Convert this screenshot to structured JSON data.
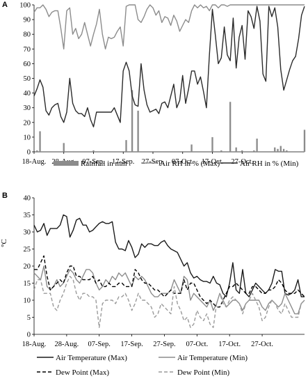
{
  "chart_data": [
    {
      "panel_label": "A",
      "type": "line",
      "ylim": [
        0,
        100
      ],
      "yticks": [
        0,
        10,
        20,
        30,
        40,
        50,
        60,
        70,
        80,
        90,
        100
      ],
      "grid": false,
      "legend_position": "bottom",
      "x_tick_labels": [
        "18-Aug.",
        "28-Aug.",
        "07-Sep.",
        "17-Sep.",
        "27-Sep.",
        "07-Oct.",
        "17-Oct.",
        "27-Oct."
      ],
      "x_tick_day_index": [
        0,
        10,
        20,
        30,
        40,
        50,
        60,
        70
      ],
      "series": [
        {
          "name": "Rainfall in mm",
          "type": "bar",
          "color": "#8c8c8c",
          "values": [
            0,
            1,
            14,
            0,
            0,
            0,
            0,
            0,
            0,
            0,
            6,
            0,
            0,
            0,
            0,
            0,
            0,
            0,
            0,
            0,
            1,
            0,
            0,
            0,
            0,
            0,
            0,
            0,
            0,
            0,
            0,
            8,
            0,
            42,
            0,
            28,
            0,
            0,
            0,
            0,
            0,
            0,
            0,
            0,
            0,
            0,
            0,
            0,
            0,
            0,
            0,
            0,
            0,
            5,
            0,
            0,
            0,
            0,
            0,
            0,
            10,
            0,
            0,
            1,
            0,
            0,
            34,
            0,
            3,
            0,
            1,
            0,
            0,
            0,
            1,
            9,
            0,
            0,
            0,
            0,
            0,
            3,
            2,
            4,
            2,
            1,
            0,
            0,
            0,
            0,
            0,
            15
          ]
        },
        {
          "name": "Air RH in % (Max)",
          "type": "line",
          "color": "#8c8c8c",
          "values": [
            95,
            98,
            98,
            100,
            97,
            92,
            95,
            96,
            96,
            84,
            70,
            96,
            98,
            80,
            84,
            77,
            80,
            88,
            80,
            72,
            80,
            87,
            97,
            80,
            70,
            78,
            77,
            78,
            82,
            85,
            72,
            99,
            100,
            100,
            100,
            90,
            88,
            92,
            97,
            100,
            98,
            93,
            96,
            88,
            92,
            91,
            86,
            93,
            89,
            82,
            86,
            90,
            88,
            96,
            100,
            98,
            100,
            98,
            99,
            96,
            100,
            100,
            98,
            100,
            100,
            99,
            100,
            100,
            100,
            100,
            100,
            100,
            100,
            100,
            100,
            100,
            100,
            100,
            100,
            100,
            100,
            100,
            100,
            100,
            100,
            100,
            100,
            100,
            100,
            100,
            100,
            100
          ]
        },
        {
          "name": "Air RH in % (Min)",
          "type": "line",
          "color": "#2a2a2a",
          "values": [
            38,
            43,
            49,
            44,
            28,
            25,
            30,
            32,
            33,
            24,
            20,
            27,
            50,
            33,
            28,
            26,
            26,
            24,
            30,
            22,
            17,
            27,
            27,
            27,
            27,
            27,
            27,
            30,
            25,
            20,
            55,
            61,
            55,
            38,
            32,
            31,
            60,
            42,
            32,
            27,
            28,
            29,
            26,
            33,
            34,
            30,
            38,
            46,
            30,
            35,
            52,
            33,
            43,
            55,
            55,
            46,
            51,
            41,
            30,
            66,
            97,
            79,
            60,
            64,
            85,
            66,
            62,
            91,
            57,
            78,
            86,
            63,
            96,
            92,
            84,
            99,
            89,
            53,
            48,
            99,
            92,
            98,
            85,
            56,
            42,
            49,
            56,
            62,
            65,
            77,
            93,
            99
          ]
        }
      ]
    },
    {
      "panel_label": "B",
      "type": "line",
      "ylabel": "°C",
      "ylim": [
        0,
        40
      ],
      "yticks": [
        0,
        5,
        10,
        15,
        20,
        25,
        30,
        35,
        40
      ],
      "grid": false,
      "legend_position": "bottom",
      "x_tick_labels": [
        "18-Aug.",
        "28-Aug.",
        "07-Sep.",
        "17-Sep.",
        "27-Sep.",
        "07-Oct.",
        "17-Oct.",
        "27-Oct."
      ],
      "x_tick_day_index": [
        0,
        10,
        20,
        30,
        40,
        50,
        60,
        70
      ],
      "series": [
        {
          "name": "Air Temperature (Max)",
          "color": "#1a1a1a",
          "dash": "none",
          "values": [
            32,
            30,
            30.5,
            32.5,
            29,
            31,
            31,
            31,
            32,
            35,
            34.5,
            28.5,
            30.5,
            33.5,
            34,
            32,
            32,
            30,
            30.5,
            31.5,
            32.5,
            33,
            32.5,
            32.5,
            33,
            27,
            25,
            25,
            24.5,
            27.5,
            25.5,
            22.5,
            23.5,
            26.5,
            25.5,
            26.5,
            26.5,
            26,
            26,
            27,
            27.5,
            26,
            25,
            24.5,
            24,
            22,
            20,
            21,
            18,
            16.5,
            17,
            16,
            15.5,
            15.5,
            15,
            17,
            15,
            14.5,
            12,
            11,
            15,
            21,
            13,
            12,
            19,
            12,
            11,
            13,
            15,
            14,
            13,
            12,
            13,
            15,
            19,
            18.5,
            18.5,
            12,
            11.5,
            12,
            13,
            16,
            11,
            11
          ]
        },
        {
          "name": "Air Temperature (Min)",
          "color": "#8c8c8c",
          "dash": "none",
          "values": [
            18,
            17,
            16,
            20,
            14,
            13,
            14,
            16,
            14,
            15,
            17,
            19,
            18,
            16,
            15,
            17,
            19,
            19,
            18,
            15,
            13,
            14,
            16,
            15,
            17,
            16,
            18,
            17,
            18,
            16,
            14,
            17,
            16,
            17,
            16,
            14,
            12,
            11,
            11,
            12,
            12,
            12,
            13,
            16,
            14,
            12,
            17,
            16,
            10,
            12,
            11,
            10,
            9,
            8,
            10,
            7,
            9,
            12,
            10,
            8,
            9,
            10,
            10,
            9,
            7,
            9,
            10,
            10,
            10,
            10,
            8,
            7,
            9,
            10,
            9,
            8,
            9,
            12,
            10,
            8,
            6,
            6,
            9,
            10
          ]
        },
        {
          "name": "Dew Point (Max)",
          "color": "#000000",
          "dash": "5,3",
          "values": [
            19,
            19,
            21,
            23,
            17,
            13,
            14,
            15,
            16,
            15,
            18,
            20,
            20,
            17,
            17,
            16,
            16,
            16,
            17,
            15,
            16,
            14,
            14,
            15,
            14,
            14,
            15,
            15,
            14,
            14,
            14,
            19,
            18,
            16,
            15,
            15,
            14,
            13,
            13,
            12,
            11,
            12,
            13,
            12,
            12,
            12,
            16,
            13,
            15,
            15,
            13,
            11,
            10,
            9,
            10,
            9,
            8,
            8,
            10,
            12,
            14,
            14,
            15,
            14,
            13,
            12,
            12,
            14,
            14,
            13,
            12,
            12,
            13,
            13,
            14,
            16,
            15,
            13,
            12,
            12,
            12,
            13,
            12,
            11
          ]
        },
        {
          "name": "Dew Point (Min)",
          "color": "#9a9a9a",
          "dash": "5,3",
          "values": [
            13,
            16,
            16,
            12,
            12,
            12,
            8,
            7,
            10,
            12,
            15,
            17,
            16,
            12,
            10,
            12,
            12,
            11,
            11,
            10,
            2,
            9,
            10,
            10,
            10,
            9,
            11,
            11,
            12,
            10,
            7,
            9,
            12,
            10,
            10,
            9,
            8,
            5,
            6,
            9,
            8,
            7,
            6,
            14,
            9,
            7,
            4,
            5,
            2,
            3,
            7,
            5,
            4,
            6,
            3,
            2,
            9,
            12,
            9,
            8,
            10,
            11,
            10,
            9,
            6,
            9,
            10,
            12,
            10,
            8,
            4,
            5,
            8,
            10,
            9,
            7,
            6,
            9,
            7,
            5,
            5,
            5,
            9,
            10
          ]
        }
      ]
    }
  ]
}
